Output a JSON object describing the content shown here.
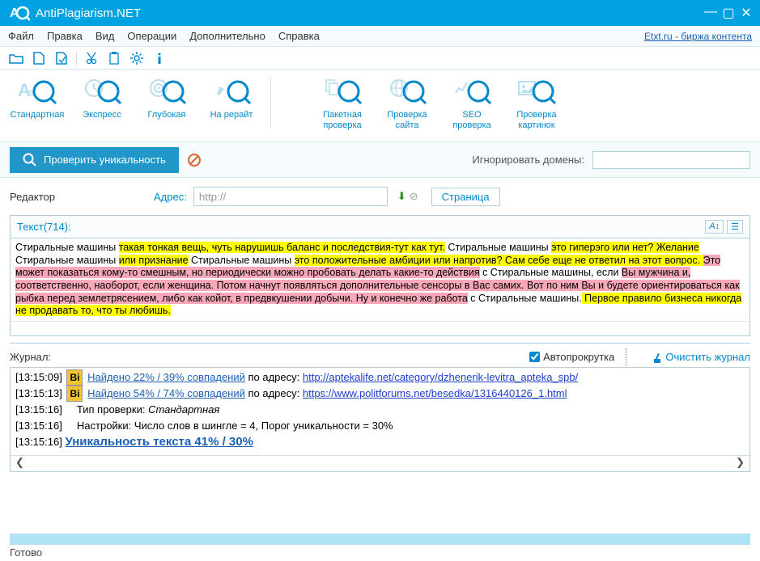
{
  "window": {
    "title": "AntiPlagiarism.NET"
  },
  "menu": {
    "items": [
      "Файл",
      "Правка",
      "Вид",
      "Операции",
      "Дополнительно",
      "Справка"
    ],
    "link": "Etxt.ru - биржа контента"
  },
  "toolbar": {
    "group1": [
      {
        "label": "Стандартная",
        "icon": "aa-magnify"
      },
      {
        "label": "Экспресс",
        "icon": "clock-magnify"
      },
      {
        "label": "Глубокая",
        "icon": "target-magnify"
      },
      {
        "label": "На рерайт",
        "icon": "pen-magnify"
      }
    ],
    "group2": [
      {
        "label": "Пакетная\nпроверка",
        "icon": "docs-magnify"
      },
      {
        "label": "Проверка\nсайта",
        "icon": "globe-magnify"
      },
      {
        "label": "SEO\nпроверка",
        "icon": "seo-magnify"
      },
      {
        "label": "Проверка\nкартинок",
        "icon": "image-magnify"
      }
    ]
  },
  "actions": {
    "check": "Проверить уникальность",
    "ignore_label": "Игнорировать домены:",
    "ignore_value": ""
  },
  "editor": {
    "label": "Редактор",
    "addr_label": "Адрес:",
    "addr_value": "http://",
    "tab": "Страница",
    "text_label": "Текст(714):",
    "segments": [
      {
        "t": "Стиральные машины ",
        "c": ""
      },
      {
        "t": "такая тонкая вещь, чуть нарушишь баланс и последствия-тут как тут.",
        "c": "hl-yellow"
      },
      {
        "t": " Стиральные машины ",
        "c": ""
      },
      {
        "t": "это гиперэго или нет? Желание",
        "c": "hl-yellow"
      },
      {
        "t": " Стиральные машины ",
        "c": ""
      },
      {
        "t": "или признание",
        "c": "hl-yellow"
      },
      {
        "t": " Стиральные машины ",
        "c": ""
      },
      {
        "t": "это положительные амбиции или напротив? Сам себе еще не ответил на этот вопрос. ",
        "c": "hl-yellow"
      },
      {
        "t": "Это может показаться кому-то смешным, но периодически можно пробовать делать какие-то действия",
        "c": "hl-pink"
      },
      {
        "t": " с Стиральные машины, если ",
        "c": ""
      },
      {
        "t": "Вы мужчина и, соответственно, наоборот, если женщина. Потом начнут появляться дополнительные сенсоры в Вас самих. Вот по ним Вы и будете ориентироваться как рыбка перед землетрясением, либо как койот, в предвкушении добычи. Ну и конечно же работа",
        "c": "hl-pink"
      },
      {
        "t": " с Стиральные машины.",
        "c": ""
      },
      {
        "t": " ",
        "c": "hl-yellow"
      },
      {
        "t": "Первое правило бизнеса никогда не продавать то, что ты любишь.",
        "c": "hl-yellow"
      }
    ]
  },
  "journal": {
    "label": "Журнал:",
    "autoscroll": "Автопрокрутка",
    "clear": "Очистить журнал",
    "lines": [
      {
        "time": "[13:15:09]",
        "bi": true,
        "link": "Найдено 22% / 39% совпадений",
        "mid": " по адресу: ",
        "url": "http://aptekalife.net/category/dzhenerik-levitra_apteka_spb/"
      },
      {
        "time": "[13:15:13]",
        "bi": true,
        "link": "Найдено 54% / 74% совпадений",
        "mid": " по адресу: ",
        "url": "https://www.politforums.net/besedka/1316440126_1.html"
      },
      {
        "time": "[13:15:16]",
        "plain": "Тип проверки: ",
        "ital": "Стандартная"
      },
      {
        "time": "[13:15:16]",
        "plain": "Настройки: Число слов в шингле = 4, Порог уникальности = 30%"
      },
      {
        "time": "[13:15:16]",
        "bold": "Уникальность текста 41% / 30%"
      }
    ]
  },
  "status": {
    "text": "Готово"
  },
  "colors": {
    "accent": "#0088cc",
    "titlebar": "#00a3e0",
    "yellow": "#ffff00",
    "pink": "#f8a8b8",
    "link": "#1a5fb4"
  }
}
